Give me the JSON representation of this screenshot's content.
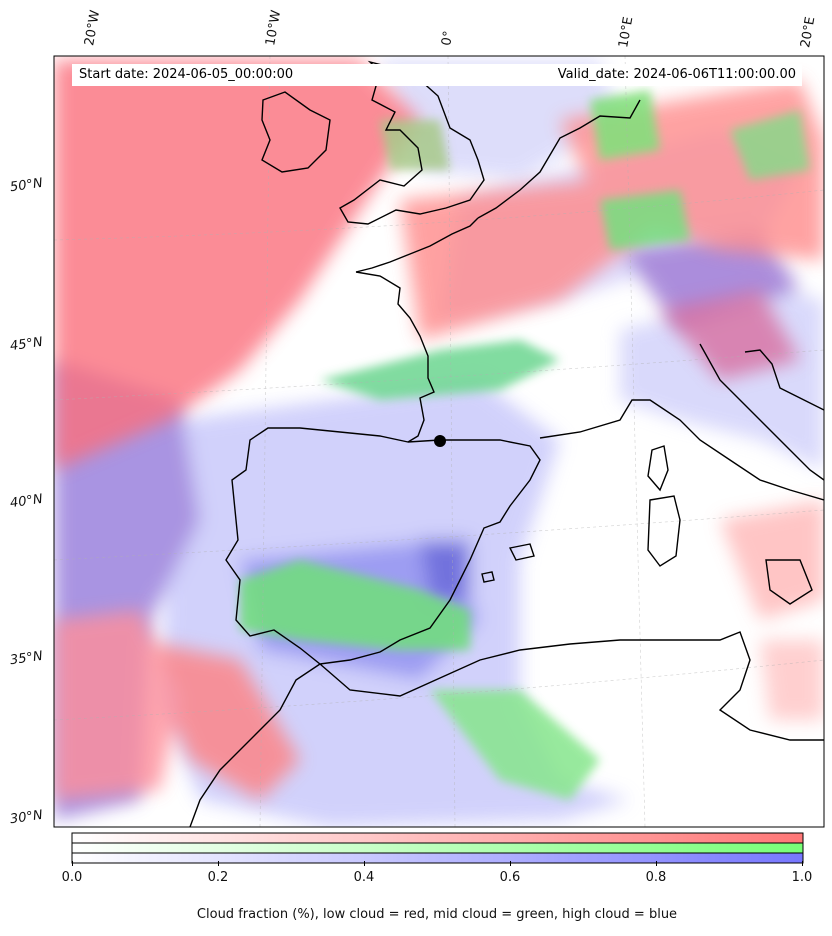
{
  "header": {
    "start_date": "Start date: 2024-06-05_00:00:00",
    "valid_date": "Valid_date: 2024-06-06T11:00:00.00"
  },
  "axes": {
    "lon_labels": [
      "20°W",
      "10°W",
      "0°",
      "10°E",
      "20°E"
    ],
    "lat_labels": [
      "50°N",
      "45°N",
      "40°N",
      "35°N",
      "30°N"
    ]
  },
  "colorbar": {
    "ticks": [
      "0.0",
      "0.2",
      "0.4",
      "0.6",
      "0.8",
      "1.0"
    ],
    "low_color": "#ff7777",
    "mid_color": "#77ff77",
    "high_color": "#7777ff",
    "caption": "Cloud fraction (%), low cloud = red, mid cloud = green, high cloud = blue"
  },
  "map": {
    "layers": [
      "low-cloud",
      "mid-cloud",
      "high-cloud"
    ],
    "coastline_color": "#000000",
    "marker": "black-dot"
  }
}
